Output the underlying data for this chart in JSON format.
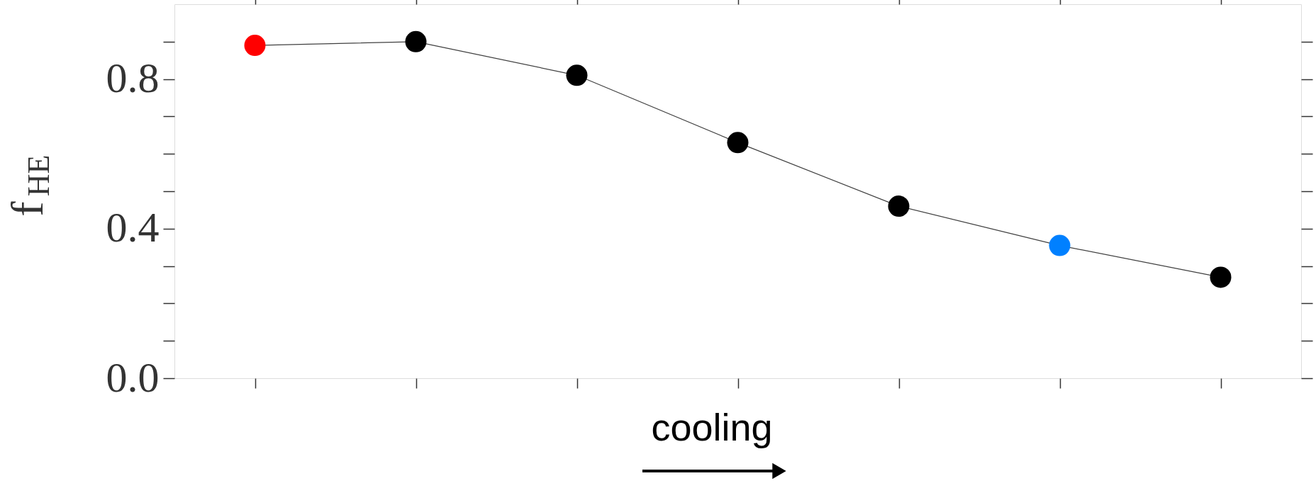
{
  "chart_data": {
    "type": "line",
    "categories": [
      null,
      null,
      null,
      null,
      null,
      null,
      null
    ],
    "series": [
      {
        "color": "#404040",
        "colors": [
          "#ff0000",
          "#000000",
          "#000000",
          "#000000",
          "#000000",
          "#0080ff",
          "#000000"
        ],
        "values": [
          0.89,
          0.9,
          0.81,
          0.63,
          0.46,
          0.355,
          0.27
        ]
      }
    ],
    "ylabel": "f$_{HE}$",
    "annotations": [
      "cooling"
    ],
    "ylim": [
      0,
      1
    ],
    "yticks": [
      {
        "value": 0,
        "label": "0.0"
      },
      {
        "value": 0.1,
        "label": null
      },
      {
        "value": 0.2,
        "label": null
      },
      {
        "value": 0.3,
        "label": null
      },
      {
        "value": 0.4,
        "label": "0.4"
      },
      {
        "value": 0.5,
        "label": null
      },
      {
        "value": 0.6,
        "label": null
      },
      {
        "value": 0.7,
        "label": null
      },
      {
        "value": 0.8,
        "label": "0.8"
      },
      {
        "value": 0.9,
        "label": null
      }
    ],
    "tick_labels": "y",
    "marker": "circle",
    "line_style": "solid",
    "grid": false
  }
}
